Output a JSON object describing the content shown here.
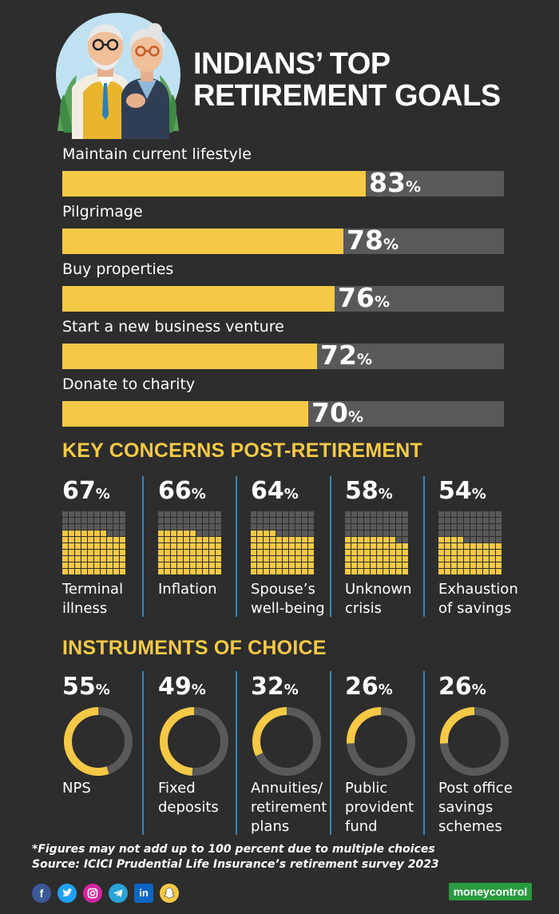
{
  "header": {
    "title_line1": "INDIANS’ TOP",
    "title_line2": "RETIREMENT GOALS"
  },
  "colors": {
    "background": "#2d2d2d",
    "accent": "#f5c945",
    "track": "#595959",
    "separator": "#3a86b8",
    "brand": "#2a9b3f"
  },
  "chart_data": [
    {
      "type": "bar",
      "title": "INDIANS’ TOP RETIREMENT GOALS",
      "orientation": "horizontal",
      "categories": [
        "Maintain current lifestyle",
        "Pilgrimage",
        "Buy properties",
        "Start a new business venture",
        "Donate to charity"
      ],
      "values": [
        83,
        78,
        76,
        72,
        70
      ],
      "unit": "%",
      "ylim": [
        0,
        100
      ]
    },
    {
      "type": "waffle",
      "title": "KEY CONCERNS POST-RETIREMENT",
      "categories": [
        "Terminal illness",
        "Inflation",
        "Spouse’s well-being",
        "Unknown crisis",
        "Exhaustion of savings"
      ],
      "label_lines": [
        [
          "Terminal",
          "illness"
        ],
        [
          "Inflation"
        ],
        [
          "Spouse’s",
          "well-being"
        ],
        [
          "Unknown",
          "crisis"
        ],
        [
          "Exhaustion",
          "of savings"
        ]
      ],
      "values": [
        67,
        66,
        64,
        58,
        54
      ],
      "unit": "%"
    },
    {
      "type": "donut",
      "title": "INSTRUMENTS OF CHOICE",
      "categories": [
        "NPS",
        "Fixed deposits",
        "Annuities/ retirement plans",
        "Public provident fund",
        "Post office savings schemes"
      ],
      "label_lines": [
        [
          "NPS"
        ],
        [
          "Fixed",
          "deposits"
        ],
        [
          "Annuities/",
          "retirement",
          "plans"
        ],
        [
          "Public",
          "provident",
          "fund"
        ],
        [
          "Post office",
          "savings",
          "schemes"
        ]
      ],
      "values": [
        55,
        49,
        32,
        26,
        26
      ],
      "unit": "%"
    }
  ],
  "footnote": {
    "line1": "*Figures may not add up to 100 percent due to multiple choices",
    "line2": "Source: ICICI Prudential Life Insurance’s retirement survey 2023"
  },
  "footer": {
    "social_icons": [
      "facebook-icon",
      "twitter-icon",
      "instagram-icon",
      "telegram-icon",
      "linkedin-icon",
      "snapchat-icon"
    ],
    "brand": "moneycontrol"
  }
}
